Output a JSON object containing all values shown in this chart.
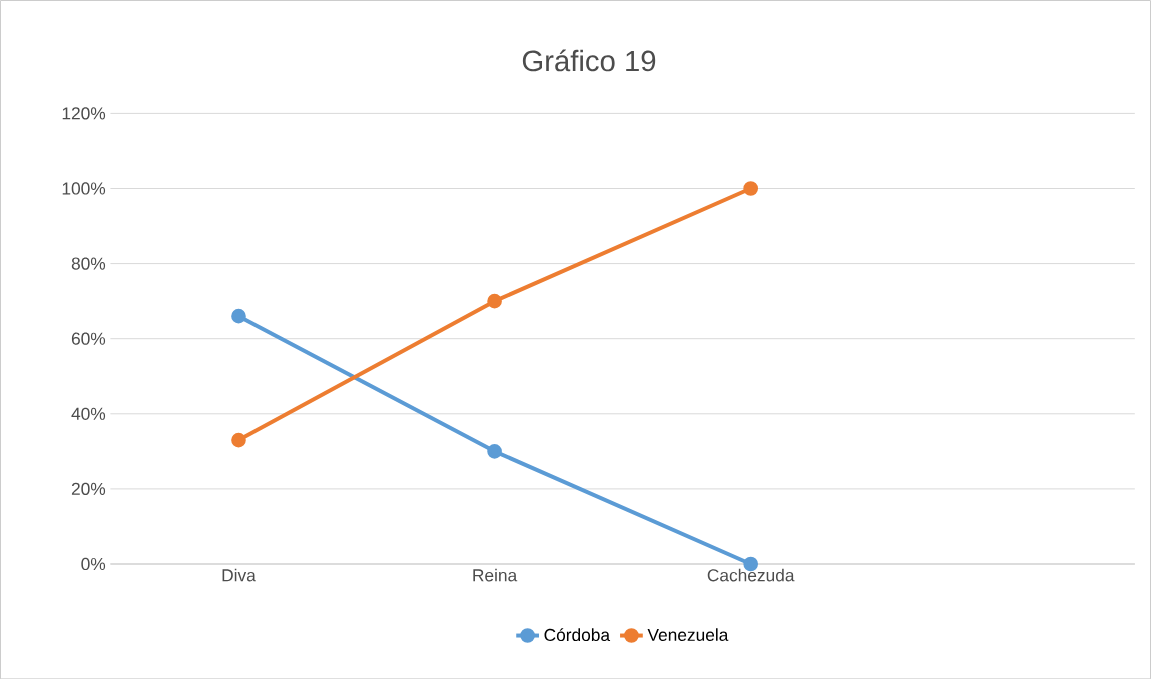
{
  "chart_data": {
    "type": "line",
    "title": "Gráfico 19",
    "categories": [
      "Diva",
      "Reina",
      "Cachezuda",
      null
    ],
    "series": [
      {
        "name": "Córdoba",
        "color": "#5b9bd5",
        "values": [
          66,
          30,
          0,
          null
        ]
      },
      {
        "name": "Venezuela",
        "color": "#ed7d31",
        "values": [
          33,
          70,
          100,
          null
        ]
      }
    ],
    "ylim": [
      0,
      120
    ],
    "yticks": [
      {
        "value": 0,
        "label": "0%"
      },
      {
        "value": 20,
        "label": "20%"
      },
      {
        "value": 40,
        "label": "40%"
      },
      {
        "value": 60,
        "label": "60%"
      },
      {
        "value": 80,
        "label": "80%"
      },
      {
        "value": 100,
        "label": "100%"
      },
      {
        "value": 120,
        "label": "120%"
      }
    ],
    "grid": "y",
    "legend": "bottom",
    "marker": "circle",
    "line_style": "solid"
  }
}
